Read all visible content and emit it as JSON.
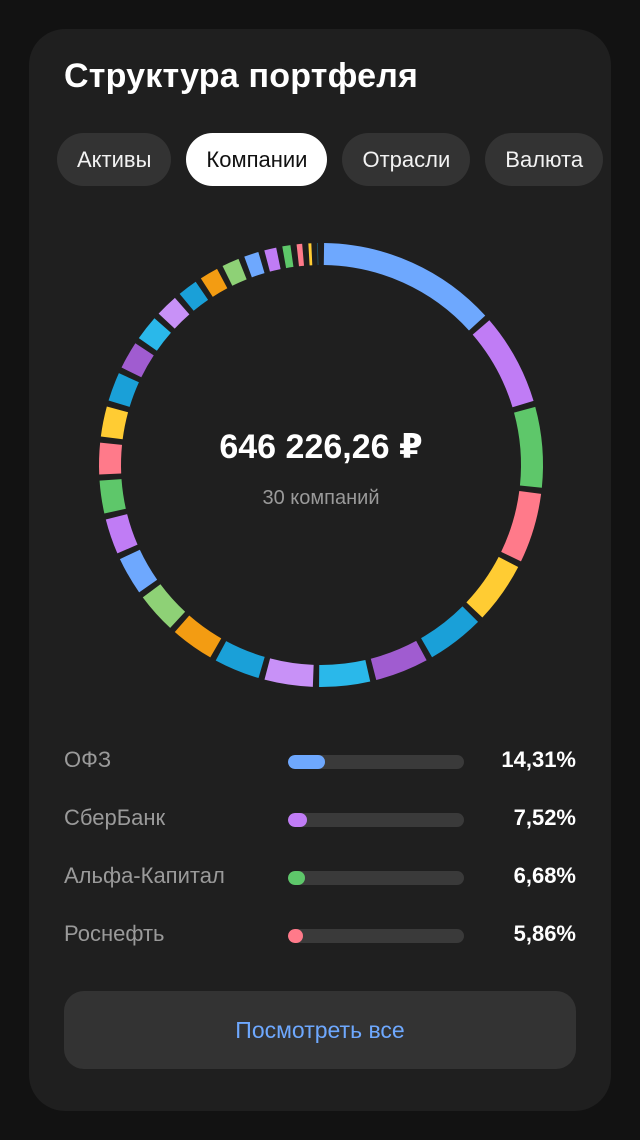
{
  "card": {
    "title": "Структура портфеля"
  },
  "tabs": [
    {
      "label": "Активы",
      "active": false
    },
    {
      "label": "Компании",
      "active": true
    },
    {
      "label": "Отрасли",
      "active": false
    },
    {
      "label": "Валюта",
      "active": false
    }
  ],
  "donut": {
    "total": "646 226,26 ₽",
    "count_label": "30 компаний"
  },
  "chart_data": {
    "type": "pie",
    "series": [
      {
        "value": 14.31,
        "color": "#6ea8fe"
      },
      {
        "value": 7.52,
        "color": "#c07cf5"
      },
      {
        "value": 6.68,
        "color": "#5ec76a"
      },
      {
        "value": 5.86,
        "color": "#ff7a8a"
      },
      {
        "value": 5.2,
        "color": "#ffcc33"
      },
      {
        "value": 4.9,
        "color": "#1aa0d8"
      },
      {
        "value": 4.6,
        "color": "#a05cd0"
      },
      {
        "value": 4.4,
        "color": "#2ab8ea"
      },
      {
        "value": 4.2,
        "color": "#c891f7"
      },
      {
        "value": 4.0,
        "color": "#1aa0d8"
      },
      {
        "value": 3.8,
        "color": "#f39c12"
      },
      {
        "value": 3.6,
        "color": "#8ed176"
      },
      {
        "value": 3.4,
        "color": "#6ea8fe"
      },
      {
        "value": 3.2,
        "color": "#c07cf5"
      },
      {
        "value": 3.0,
        "color": "#5ec76a"
      },
      {
        "value": 2.9,
        "color": "#ff7a8a"
      },
      {
        "value": 2.8,
        "color": "#ffcc33"
      },
      {
        "value": 2.7,
        "color": "#1aa0d8"
      },
      {
        "value": 2.6,
        "color": "#a05cd0"
      },
      {
        "value": 2.4,
        "color": "#2ab8ea"
      },
      {
        "value": 2.2,
        "color": "#c891f7"
      },
      {
        "value": 2.0,
        "color": "#1aa0d8"
      },
      {
        "value": 1.9,
        "color": "#f39c12"
      },
      {
        "value": 1.8,
        "color": "#8ed176"
      },
      {
        "value": 1.6,
        "color": "#6ea8fe"
      },
      {
        "value": 1.4,
        "color": "#c07cf5"
      },
      {
        "value": 1.1,
        "color": "#5ec76a"
      },
      {
        "value": 0.9,
        "color": "#ff7a8a"
      },
      {
        "value": 0.7,
        "color": "#ffcc33"
      },
      {
        "value": 0.5,
        "color": "#1aa0d8"
      }
    ]
  },
  "top_companies": [
    {
      "name": "ОФЗ",
      "pct": "14,31%",
      "share": 14.31,
      "color": "#6ea8fe"
    },
    {
      "name": "СберБанк",
      "pct": "7,52%",
      "share": 7.52,
      "color": "#c07cf5"
    },
    {
      "name": "Альфа-Капитал",
      "pct": "6,68%",
      "share": 6.68,
      "color": "#5ec76a"
    },
    {
      "name": "Роснефть",
      "pct": "5,86%",
      "share": 5.86,
      "color": "#ff7a8a"
    }
  ],
  "view_all_label": "Посмотреть все"
}
